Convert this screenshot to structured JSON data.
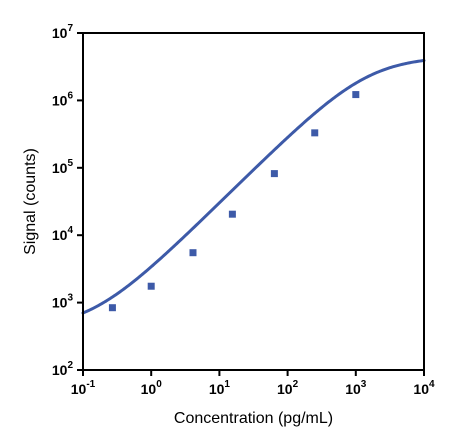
{
  "chart_data": {
    "type": "scatter",
    "title": "",
    "xlabel": "Concentration (pg/mL)",
    "ylabel": "Signal (counts)",
    "x_scale": "log10",
    "y_scale": "log10",
    "xlim": [
      0.1,
      10000
    ],
    "ylim": [
      100,
      10000000
    ],
    "x_ticks": [
      {
        "base": "10",
        "exp": "-1"
      },
      {
        "base": "10",
        "exp": "0"
      },
      {
        "base": "10",
        "exp": "1"
      },
      {
        "base": "10",
        "exp": "2"
      },
      {
        "base": "10",
        "exp": "3"
      },
      {
        "base": "10",
        "exp": "4"
      }
    ],
    "y_ticks": [
      {
        "base": "10",
        "exp": "2"
      },
      {
        "base": "10",
        "exp": "3"
      },
      {
        "base": "10",
        "exp": "4"
      },
      {
        "base": "10",
        "exp": "5"
      },
      {
        "base": "10",
        "exp": "6"
      },
      {
        "base": "10",
        "exp": "7"
      }
    ],
    "grid": false,
    "legend": "none",
    "series": [
      {
        "marker": "square",
        "color": "#3d5aa8",
        "points": [
          {
            "x": 0.27,
            "y": 840
          },
          {
            "x": 1.0,
            "y": 1750
          },
          {
            "x": 4.1,
            "y": 5500
          },
          {
            "x": 15.5,
            "y": 20500
          },
          {
            "x": 64,
            "y": 82000
          },
          {
            "x": 250,
            "y": 330000
          },
          {
            "x": 1000,
            "y": 1220000
          }
        ]
      }
    ],
    "fit_curve": {
      "type": "4PL",
      "color": "#3d5aa8",
      "bottom": 400,
      "top": 4500000,
      "ec50": 1500,
      "hill": 1.0
    }
  }
}
